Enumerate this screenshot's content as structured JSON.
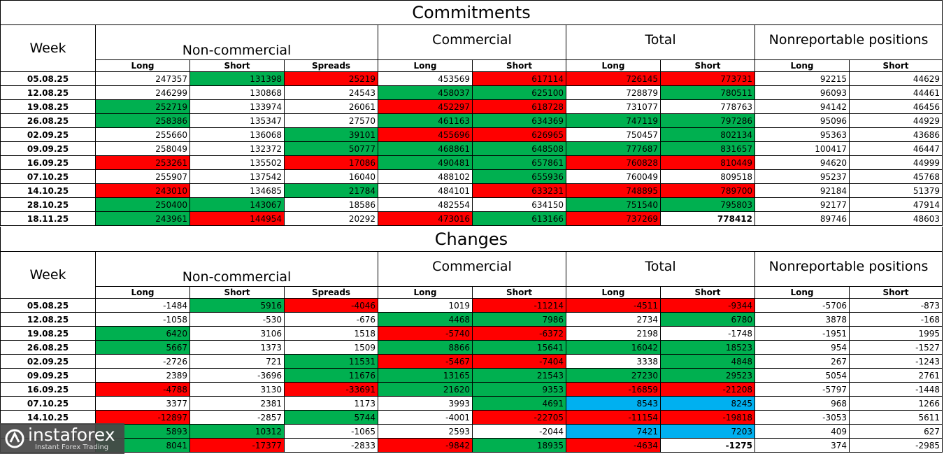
{
  "tables": [
    {
      "title": "Commitments",
      "week_header": "Week",
      "groups": [
        "Non-commercial",
        "Commercial",
        "Total",
        "Nonreportable positions"
      ],
      "subheaders": [
        "Long",
        "Short",
        "Spreads",
        "Long",
        "Short",
        "Long",
        "Short",
        "Long",
        "Short"
      ],
      "rows": [
        {
          "week": "05.08.25",
          "cells": [
            247357,
            {
              "value": 131398,
              "fill": "green"
            },
            {
              "value": 25219,
              "fill": "red"
            },
            453569,
            {
              "value": 617114,
              "fill": "red"
            },
            {
              "value": 726145,
              "fill": "red"
            },
            {
              "value": 773731,
              "fill": "red"
            },
            92215,
            44629
          ]
        },
        {
          "week": "12.08.25",
          "cells": [
            246299,
            130868,
            24543,
            {
              "value": 458037,
              "fill": "green"
            },
            {
              "value": 625100,
              "fill": "green"
            },
            728879,
            {
              "value": 780511,
              "fill": "green"
            },
            96093,
            44461
          ]
        },
        {
          "week": "19.08.25",
          "cells": [
            {
              "value": 252719,
              "fill": "green"
            },
            133974,
            26061,
            {
              "value": 452297,
              "fill": "red"
            },
            {
              "value": 618728,
              "fill": "red"
            },
            731077,
            778763,
            94142,
            46456
          ]
        },
        {
          "week": "26.08.25",
          "cells": [
            {
              "value": 258386,
              "fill": "green"
            },
            135347,
            27570,
            {
              "value": 461163,
              "fill": "green"
            },
            {
              "value": 634369,
              "fill": "green"
            },
            {
              "value": 747119,
              "fill": "green"
            },
            {
              "value": 797286,
              "fill": "green"
            },
            95096,
            44929
          ]
        },
        {
          "week": "02.09.25",
          "cells": [
            255660,
            136068,
            {
              "value": 39101,
              "fill": "green"
            },
            {
              "value": 455696,
              "fill": "red"
            },
            {
              "value": 626965,
              "fill": "red"
            },
            750457,
            {
              "value": 802134,
              "fill": "green"
            },
            95363,
            43686
          ]
        },
        {
          "week": "09.09.25",
          "cells": [
            258049,
            132372,
            {
              "value": 50777,
              "fill": "green"
            },
            {
              "value": 468861,
              "fill": "green"
            },
            {
              "value": 648508,
              "fill": "green"
            },
            {
              "value": 777687,
              "fill": "green"
            },
            {
              "value": 831657,
              "fill": "green"
            },
            100417,
            46447
          ]
        },
        {
          "week": "16.09.25",
          "cells": [
            {
              "value": 253261,
              "fill": "red"
            },
            135502,
            {
              "value": 17086,
              "fill": "red"
            },
            {
              "value": 490481,
              "fill": "green"
            },
            {
              "value": 657861,
              "fill": "green"
            },
            {
              "value": 760828,
              "fill": "red"
            },
            {
              "value": 810449,
              "fill": "red"
            },
            94620,
            44999
          ]
        },
        {
          "week": "07.10.25",
          "cells": [
            255907,
            137542,
            16040,
            488102,
            {
              "value": 655936,
              "fill": "green"
            },
            760049,
            809518,
            95237,
            45768
          ]
        },
        {
          "week": "14.10.25",
          "cells": [
            {
              "value": 243010,
              "fill": "red"
            },
            134685,
            {
              "value": 21784,
              "fill": "green"
            },
            484101,
            {
              "value": 633231,
              "fill": "red"
            },
            {
              "value": 748895,
              "fill": "red"
            },
            {
              "value": 789700,
              "fill": "red"
            },
            92184,
            51379
          ]
        },
        {
          "week": "28.10.25",
          "cells": [
            {
              "value": 250400,
              "fill": "green"
            },
            {
              "value": 143067,
              "fill": "green"
            },
            18586,
            482554,
            634150,
            {
              "value": 751540,
              "fill": "green"
            },
            {
              "value": 795803,
              "fill": "green"
            },
            92177,
            47914
          ]
        },
        {
          "week": "18.11.25",
          "cells": [
            {
              "value": 243961,
              "fill": "green"
            },
            {
              "value": 144954,
              "fill": "red"
            },
            20292,
            {
              "value": 473016,
              "fill": "red"
            },
            {
              "value": 613166,
              "fill": "green"
            },
            {
              "value": 737269,
              "fill": "red"
            },
            {
              "value": 778412,
              "bold": true
            },
            89746,
            48603
          ]
        }
      ]
    },
    {
      "title": "Changes",
      "week_header": "Week",
      "groups": [
        "Non-commercial",
        "Commercial",
        "Total",
        "Nonreportable positions"
      ],
      "subheaders": [
        "Long",
        "Short",
        "Spreads",
        "Long",
        "Short",
        "Long",
        "Short",
        "Long",
        "Short"
      ],
      "rows": [
        {
          "week": "05.08.25",
          "cells": [
            -1484,
            {
              "value": 5916,
              "fill": "green"
            },
            {
              "value": -4046,
              "fill": "red"
            },
            1019,
            {
              "value": -11214,
              "fill": "red"
            },
            {
              "value": -4511,
              "fill": "red"
            },
            {
              "value": -9344,
              "fill": "red"
            },
            -5706,
            -873
          ]
        },
        {
          "week": "12.08.25",
          "cells": [
            -1058,
            -530,
            -676,
            {
              "value": 4468,
              "fill": "green"
            },
            {
              "value": 7986,
              "fill": "green"
            },
            2734,
            {
              "value": 6780,
              "fill": "green"
            },
            3878,
            -168
          ]
        },
        {
          "week": "19.08.25",
          "cells": [
            {
              "value": 6420,
              "fill": "green"
            },
            3106,
            1518,
            {
              "value": -5740,
              "fill": "red"
            },
            {
              "value": -6372,
              "fill": "red"
            },
            2198,
            -1748,
            -1951,
            1995
          ]
        },
        {
          "week": "26.08.25",
          "cells": [
            {
              "value": 5667,
              "fill": "green"
            },
            1373,
            1509,
            {
              "value": 8866,
              "fill": "green"
            },
            {
              "value": 15641,
              "fill": "green"
            },
            {
              "value": 16042,
              "fill": "green"
            },
            {
              "value": 18523,
              "fill": "green"
            },
            954,
            -1527
          ]
        },
        {
          "week": "02.09.25",
          "cells": [
            -2726,
            721,
            {
              "value": 11531,
              "fill": "green"
            },
            {
              "value": -5467,
              "fill": "red"
            },
            {
              "value": -7404,
              "fill": "red"
            },
            3338,
            {
              "value": 4848,
              "fill": "green"
            },
            267,
            -1243
          ]
        },
        {
          "week": "09.09.25",
          "cells": [
            2389,
            -3696,
            {
              "value": 11676,
              "fill": "green"
            },
            {
              "value": 13165,
              "fill": "green"
            },
            {
              "value": 21543,
              "fill": "green"
            },
            {
              "value": 27230,
              "fill": "green"
            },
            {
              "value": 29523,
              "fill": "green"
            },
            5054,
            2761
          ]
        },
        {
          "week": "16.09.25",
          "cells": [
            {
              "value": -4788,
              "fill": "red"
            },
            3130,
            {
              "value": -33691,
              "fill": "red"
            },
            {
              "value": 21620,
              "fill": "green"
            },
            {
              "value": 9353,
              "fill": "green"
            },
            {
              "value": -16859,
              "fill": "red"
            },
            {
              "value": -21208,
              "fill": "red"
            },
            -5797,
            -1448
          ]
        },
        {
          "week": "07.10.25",
          "cells": [
            3377,
            2381,
            1173,
            3993,
            {
              "value": 4691,
              "fill": "green"
            },
            {
              "value": 8543,
              "fill": "blue"
            },
            {
              "value": 8245,
              "fill": "blue"
            },
            968,
            1266
          ]
        },
        {
          "week": "14.10.25",
          "cells": [
            {
              "value": -12897,
              "fill": "red"
            },
            -2857,
            {
              "value": 5744,
              "fill": "green"
            },
            -4001,
            {
              "value": -22705,
              "fill": "red"
            },
            {
              "value": -11154,
              "fill": "red"
            },
            {
              "value": -19818,
              "fill": "red"
            },
            -3053,
            5611
          ]
        },
        {
          "week": null,
          "cells": [
            {
              "value": 5893,
              "fill": "green"
            },
            {
              "value": 10312,
              "fill": "green"
            },
            -1065,
            2593,
            -2044,
            {
              "value": 7421,
              "fill": "blue"
            },
            {
              "value": 7203,
              "fill": "blue"
            },
            409,
            627
          ]
        },
        {
          "week": null,
          "cells": [
            {
              "value": 8041,
              "fill": "green"
            },
            {
              "value": -17377,
              "fill": "red"
            },
            -2833,
            {
              "value": -9842,
              "fill": "red"
            },
            {
              "value": 18935,
              "fill": "green"
            },
            {
              "value": -4634,
              "fill": "red"
            },
            {
              "value": -1275,
              "bold": true
            },
            374,
            -2985
          ]
        }
      ]
    }
  ],
  "logo": {
    "name": "instaforex",
    "tagline": "Instant Forex Trading"
  }
}
